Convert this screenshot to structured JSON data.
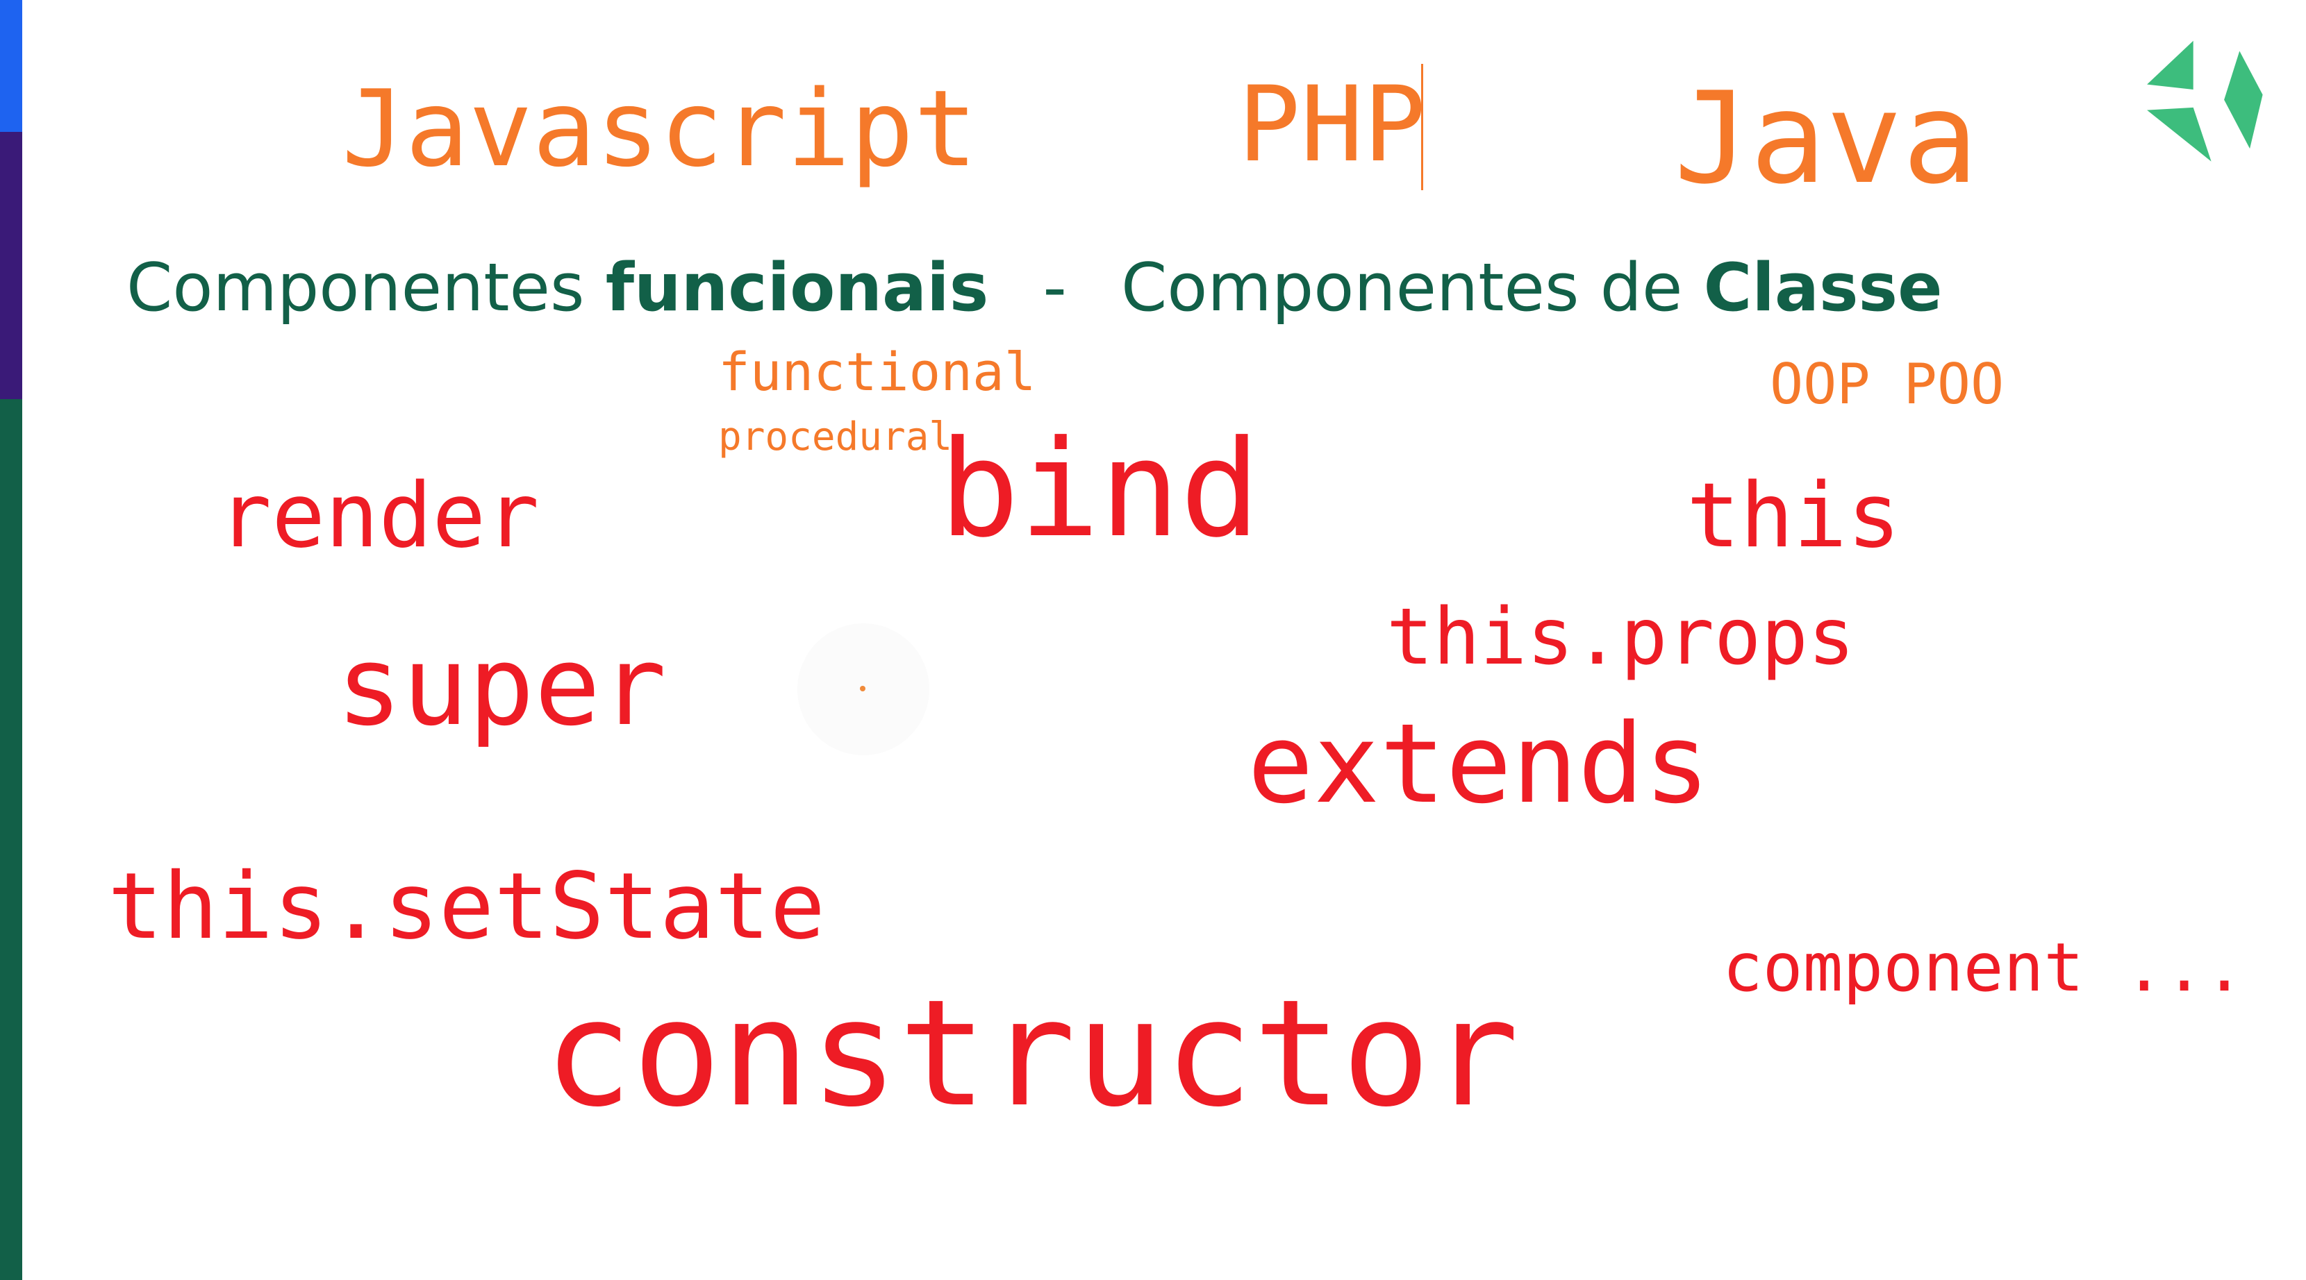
{
  "colors": {
    "accent_orange": "#f5792a",
    "keyword_red": "#ee1c25",
    "heading_green": "#126048",
    "stripe_blue": "#1e63f0",
    "stripe_purple": "#3a1a78",
    "stripe_green": "#126048",
    "logo_green": "#3dbd7d"
  },
  "languages": [
    "Javascript",
    "PHP",
    "Java"
  ],
  "logo": {
    "icon": "paper-plane-logo-icon"
  },
  "headline": {
    "left_prefix": "Componentes",
    "left_bold": "funcionais",
    "separator": "-",
    "right_prefix": "Componentes de",
    "right_bold": "Classe"
  },
  "paradigms": {
    "functional": "functional",
    "procedural": "procedural",
    "oop": "OOP POO"
  },
  "keywords": {
    "render": "render",
    "bind": "bind",
    "this": "this",
    "this_props": "this.props",
    "super": "super",
    "extends": "extends",
    "this_setstate": "this.setState",
    "component": "component ...",
    "constructor": "constructor"
  }
}
